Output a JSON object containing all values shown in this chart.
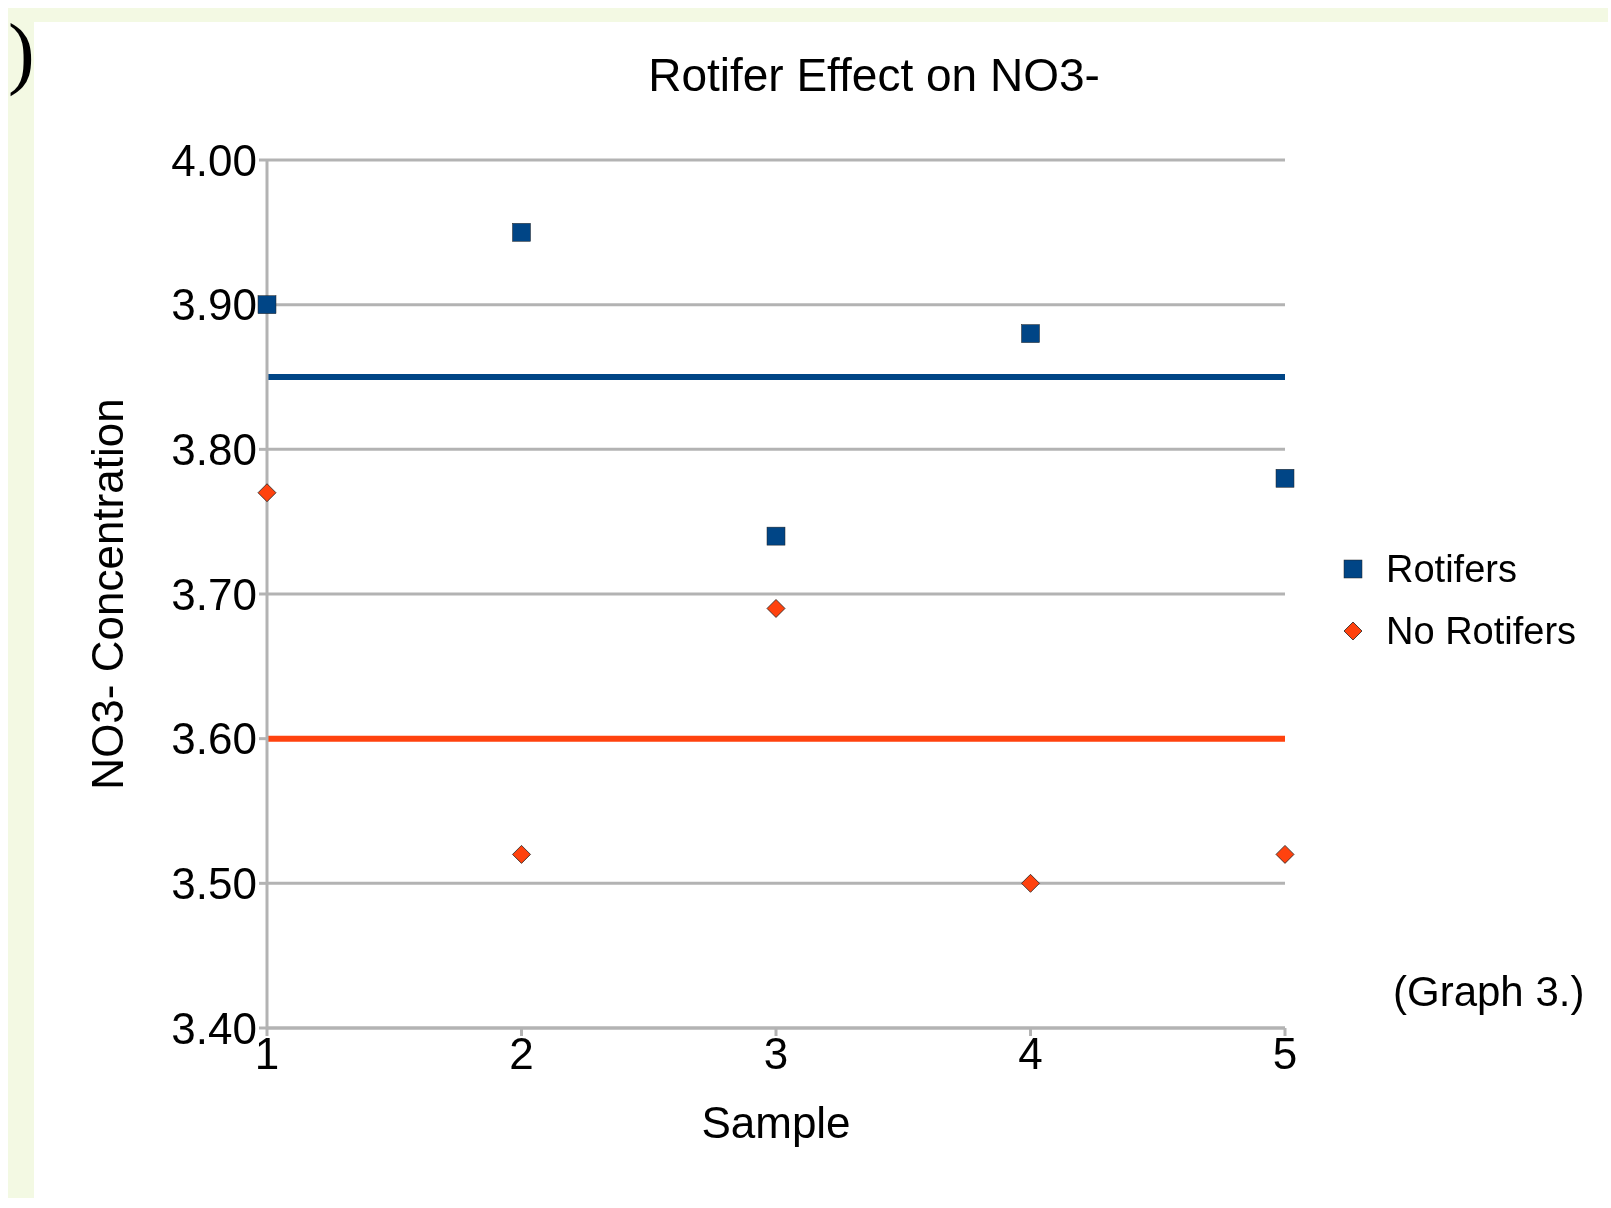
{
  "chart_data": {
    "type": "scatter",
    "title": "Rotifer Effect on NO3-",
    "xlabel": "Sample",
    "ylabel": "NO3- Concentration",
    "x": [
      1,
      2,
      3,
      4,
      5
    ],
    "series": [
      {
        "name": "Rotifers",
        "color": "#004586",
        "marker": "square",
        "values": [
          3.9,
          3.95,
          3.74,
          3.88,
          3.78
        ]
      },
      {
        "name": "No Rotifers",
        "color": "#ff420e",
        "marker": "diamond",
        "values": [
          3.77,
          3.52,
          3.69,
          3.5,
          3.52
        ]
      }
    ],
    "ref_lines": [
      {
        "axis": "y",
        "value": 3.85,
        "color": "#004586"
      },
      {
        "axis": "y",
        "value": 3.6,
        "color": "#ff420e"
      }
    ],
    "xlim": [
      1,
      5
    ],
    "xticks": [
      1,
      2,
      3,
      4,
      5
    ],
    "ylim": [
      3.4,
      4.0
    ],
    "yticks": [
      {
        "value": 3.4,
        "label": "3.40"
      },
      {
        "value": 3.5,
        "label": "3.50"
      },
      {
        "value": 3.6,
        "label": "3.60"
      },
      {
        "value": 3.7,
        "label": "3.70"
      },
      {
        "value": 3.8,
        "label": "3.80"
      },
      {
        "value": 3.9,
        "label": "3.90"
      },
      {
        "value": 4.0,
        "label": "4.00"
      }
    ],
    "grid": "y",
    "legend": "right",
    "annotations": [
      ")",
      "(Graph 3.)"
    ]
  }
}
